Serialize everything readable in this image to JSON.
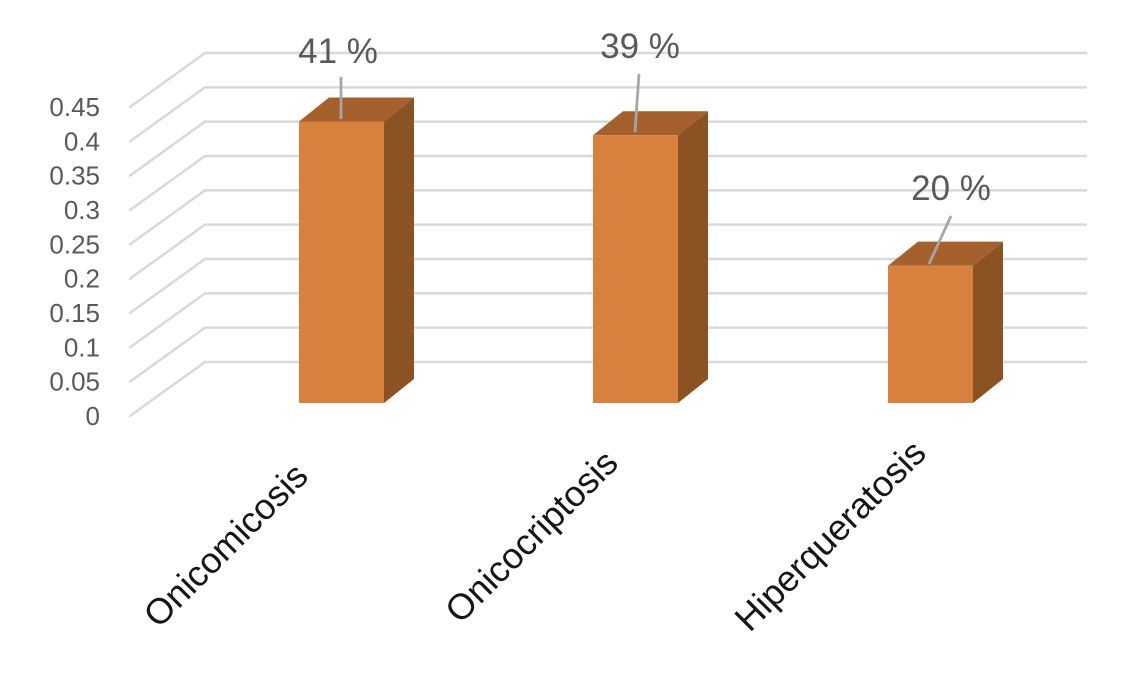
{
  "chart_data": {
    "type": "bar",
    "subtype": "3d-column",
    "title": "",
    "xlabel": "",
    "ylabel": "",
    "categories": [
      "Onicomicosis",
      "Onicocriptosis",
      "Hiperqueratosis"
    ],
    "values": [
      0.41,
      0.39,
      0.2
    ],
    "data_labels": [
      "41 %",
      "39 %",
      "20 %"
    ],
    "ylim": [
      0,
      0.45
    ],
    "ytick_step": 0.05,
    "ytick_labels": [
      "0",
      "0.05",
      "0.1",
      "0.15",
      "0.2",
      "0.25",
      "0.3",
      "0.35",
      "0.4",
      "0.45"
    ],
    "grid": true,
    "legend": "none",
    "colors": {
      "bar_front": "#D8803D",
      "bar_top": "#A5602D",
      "bar_side": "#8B5223",
      "gridline": "#D9D9D9",
      "leader_line": "#A6A6A6",
      "value_label_color": "#595959",
      "axis_label_color": "#595959",
      "category_label_color": "#161616",
      "background": "#FFFFFF"
    }
  }
}
